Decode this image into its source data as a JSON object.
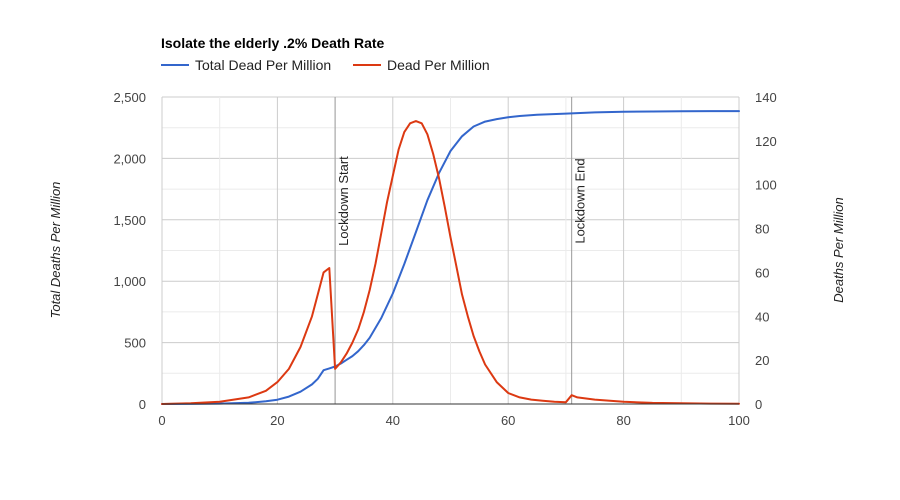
{
  "chart_data": {
    "type": "line",
    "title": "Isolate the elderly .2% Death Rate",
    "legend_position": "top-left",
    "xlabel": "",
    "ylabel_left": "Total Deaths Per Million",
    "ylabel_right": "Deaths Per Million",
    "xlim": [
      0,
      100
    ],
    "ylim_left": [
      0,
      2500
    ],
    "ylim_right": [
      0,
      140
    ],
    "x_ticks": [
      "0",
      "20",
      "40",
      "60",
      "80",
      "100"
    ],
    "y_left_ticks": [
      "0",
      "500",
      "1,000",
      "1,500",
      "2,000",
      "2,500"
    ],
    "y_right_ticks": [
      "0",
      "20",
      "40",
      "60",
      "80",
      "100",
      "120",
      "140"
    ],
    "grid": true,
    "annotations": [
      {
        "x": 30,
        "label": "Lockdown Start",
        "color": "#999999"
      },
      {
        "x": 71,
        "label": "Lockdown End",
        "color": "#999999"
      }
    ],
    "series": [
      {
        "name": "Total Dead Per Million",
        "axis": "left",
        "color": "#3366cc",
        "x": [
          0,
          5,
          10,
          15,
          18,
          20,
          22,
          24,
          26,
          27,
          28,
          29,
          30,
          31,
          32,
          33,
          34,
          35,
          36,
          38,
          40,
          42,
          44,
          46,
          48,
          50,
          52,
          54,
          56,
          58,
          60,
          62,
          65,
          70,
          75,
          80,
          85,
          90,
          95,
          100
        ],
        "values": [
          0,
          1,
          3,
          10,
          22,
          35,
          60,
          100,
          160,
          205,
          275,
          290,
          305,
          330,
          360,
          390,
          430,
          480,
          540,
          700,
          900,
          1140,
          1400,
          1660,
          1880,
          2060,
          2180,
          2260,
          2300,
          2320,
          2335,
          2345,
          2355,
          2365,
          2375,
          2380,
          2382,
          2384,
          2385,
          2385
        ]
      },
      {
        "name": "Dead Per Million",
        "axis": "right",
        "color": "#dc3912",
        "x": [
          0,
          5,
          10,
          15,
          18,
          20,
          22,
          24,
          26,
          27,
          28,
          29,
          30,
          31,
          32,
          33,
          34,
          35,
          36,
          37,
          38,
          39,
          40,
          41,
          42,
          43,
          44,
          45,
          46,
          47,
          48,
          49,
          50,
          51,
          52,
          53,
          54,
          55,
          56,
          58,
          60,
          62,
          64,
          66,
          68,
          70,
          71,
          72,
          75,
          80,
          85,
          90,
          95,
          100
        ],
        "values": [
          0,
          0.3,
          1,
          3,
          6,
          10,
          16,
          26,
          40,
          50,
          60,
          62,
          16,
          19,
          23,
          28,
          34,
          42,
          52,
          64,
          78,
          92,
          104,
          116,
          124,
          128,
          129,
          128,
          123,
          114,
          103,
          90,
          76,
          63,
          50,
          40,
          31,
          24,
          18,
          10,
          5,
          3,
          2,
          1.5,
          1,
          0.8,
          4,
          3,
          2,
          1,
          0.5,
          0.3,
          0.2,
          0.1
        ]
      }
    ]
  }
}
